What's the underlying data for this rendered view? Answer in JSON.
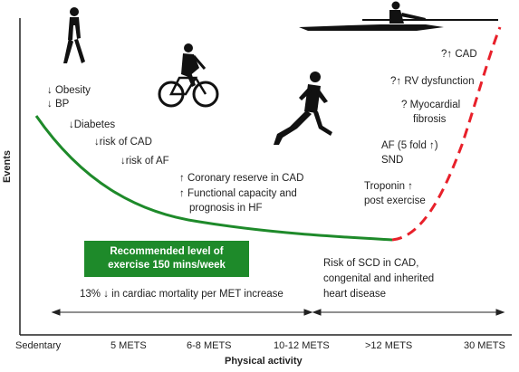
{
  "axes": {
    "y_title": "Events",
    "x_title": "Physical activity",
    "x_ticks": [
      "Sedentary",
      "5 METS",
      "6-8 METS",
      "10-12 METS",
      ">12 METS",
      "30 METS"
    ]
  },
  "left_effects": [
    "↓ Obesity",
    "↓ BP",
    "↓Diabetes",
    "↓risk of CAD",
    "↓risk of AF"
  ],
  "middle_effects": [
    "↑ Coronary reserve in CAD",
    "↑ Functional capacity and",
    "prognosis in HF"
  ],
  "recommendation": {
    "line1": "Recommended level of",
    "line2": "exercise 150 mins/week"
  },
  "mortality_note": "13% ↓ in cardiac mortality per MET increase",
  "scd_note": [
    "Risk of SCD in CAD,",
    "congenital and inherited",
    "heart disease"
  ],
  "right_effects": {
    "cad": "?↑ CAD",
    "rv": "?↑ RV dysfunction",
    "myo1": "? Myocardial",
    "myo2": "fibrosis",
    "af1": "AF (5 fold ↑)",
    "af2": "SND",
    "trop1": "Troponin ↑",
    "trop2": "post exercise"
  },
  "colors": {
    "benefit_curve": "#1e8a2a",
    "risk_curve": "#e8202a",
    "silhouette": "#111111"
  },
  "icons": [
    "walking-person-icon",
    "cyclist-icon",
    "runner-icon",
    "rower-icon"
  ]
}
